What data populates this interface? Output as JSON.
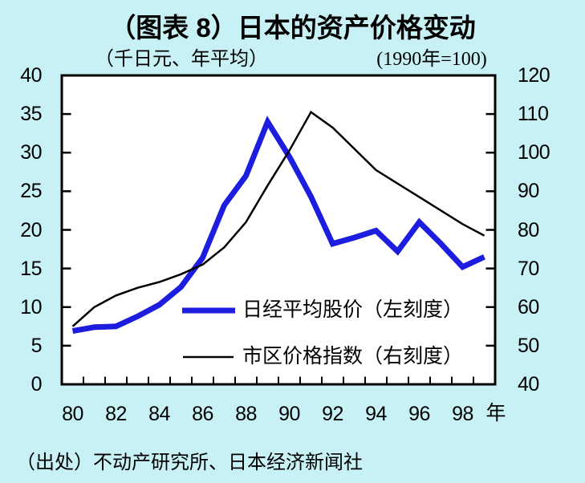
{
  "title": "（图表 8）日本的资产价格变动",
  "left_axis_caption": "（千日元、年平均）",
  "right_axis_caption": "(1990年=100)",
  "x_axis_unit": "年",
  "source": "（出处）不动产研究所、日本经济新闻社",
  "colors": {
    "background": "#c8f1f5",
    "plot_background": "#ffffff",
    "frame": "#000000",
    "text": "#000000",
    "nikkei_line": "#1d1de0",
    "land_index_line": "#000000"
  },
  "chart_data": {
    "type": "line",
    "x": [
      1980,
      1981,
      1982,
      1983,
      1984,
      1985,
      1986,
      1987,
      1988,
      1989,
      1990,
      1991,
      1992,
      1993,
      1994,
      1995,
      1996,
      1997,
      1998,
      1999
    ],
    "x_tick_labels": [
      "80",
      "82",
      "84",
      "86",
      "88",
      "90",
      "92",
      "94",
      "96",
      "98"
    ],
    "left_axis": {
      "label": "（千日元、年平均）",
      "range": [
        0,
        40
      ],
      "ticks": [
        0,
        5,
        10,
        15,
        20,
        25,
        30,
        35,
        40
      ]
    },
    "right_axis": {
      "label": "(1990年=100)",
      "range": [
        40,
        120
      ],
      "ticks": [
        40,
        50,
        60,
        70,
        80,
        90,
        100,
        110,
        120
      ]
    },
    "grid": false,
    "legend_position": "inside-lower-right",
    "series": [
      {
        "name": "日经平均股价（左刻度）",
        "axis": "left",
        "color": "#1d1de0",
        "stroke_width": 7,
        "values": [
          6.9,
          7.4,
          7.5,
          8.8,
          10.3,
          12.6,
          16.4,
          23.2,
          27.0,
          34.0,
          29.5,
          24.3,
          18.2,
          19.0,
          19.9,
          17.2,
          21.0,
          18.2,
          15.2,
          16.5
        ]
      },
      {
        "name": "市区价格指数（右刻度）",
        "axis": "right",
        "color": "#000000",
        "stroke_width": 2.5,
        "values": [
          55,
          60,
          63,
          65,
          66.5,
          68.5,
          71,
          75.5,
          82,
          91.5,
          100.5,
          110.5,
          106.5,
          101,
          95.5,
          92,
          88.5,
          85,
          81.5,
          78.5
        ]
      }
    ]
  }
}
